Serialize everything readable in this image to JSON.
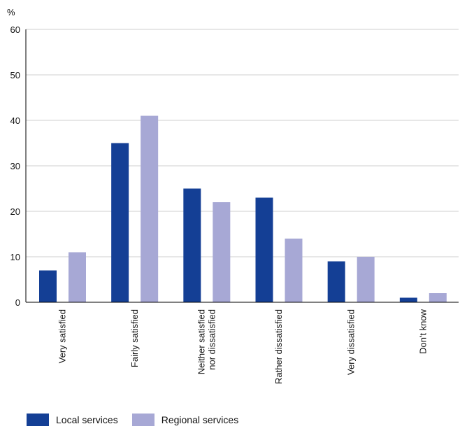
{
  "chart_data": {
    "type": "bar",
    "ylabel": "%",
    "ylim": [
      0,
      60
    ],
    "yticks": [
      0,
      10,
      20,
      30,
      40,
      50,
      60
    ],
    "grid": true,
    "legend_position": "bottom-left",
    "categories": [
      [
        "Very satisfied"
      ],
      [
        "Fairly satisfied"
      ],
      [
        "Neither satisfied",
        "nor dissatisfied"
      ],
      [
        "Rather dissatisfied"
      ],
      [
        "Very dissatisfied"
      ],
      [
        "Don't know"
      ]
    ],
    "series": [
      {
        "name": "Local services",
        "color": "#143f95",
        "values": [
          7,
          35,
          25,
          23,
          9,
          1
        ]
      },
      {
        "name": "Regional services",
        "color": "#a7a8d5",
        "values": [
          11,
          41,
          22,
          14,
          10,
          2
        ]
      }
    ]
  }
}
